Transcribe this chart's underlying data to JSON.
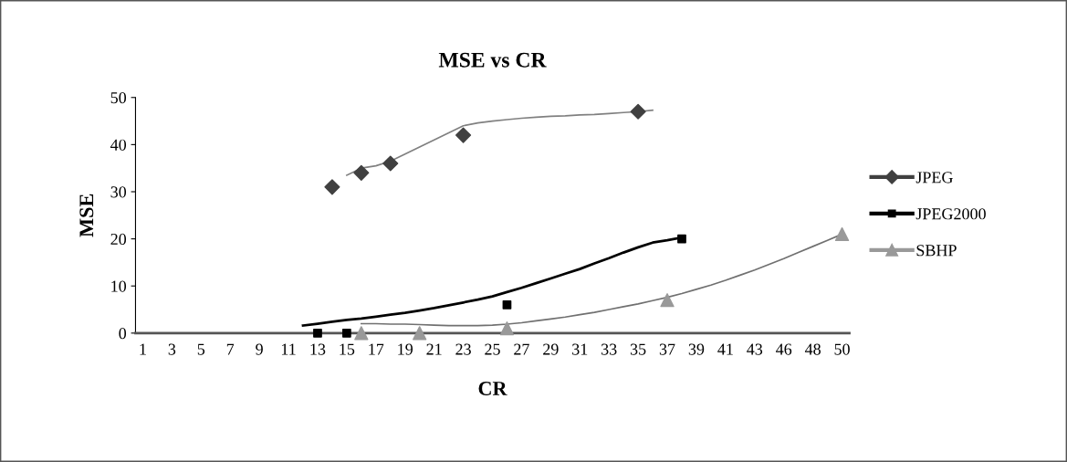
{
  "chart_data": {
    "type": "scatter",
    "title": "MSE vs CR",
    "xlabel": "CR",
    "ylabel": "MSE",
    "categories": [
      "1",
      null,
      "3",
      null,
      "5",
      null,
      "7",
      null,
      "9",
      null,
      "11",
      null,
      "13",
      null,
      "15",
      null,
      "17",
      null,
      "19",
      null,
      "21",
      null,
      "23",
      null,
      "25",
      null,
      "27",
      null,
      "29",
      null,
      "31",
      null,
      "33",
      null,
      "35",
      null,
      "37",
      null,
      "39",
      null,
      "41",
      null,
      "43",
      null,
      "46",
      null,
      "48",
      null,
      "50"
    ],
    "ylim": [
      0,
      50
    ],
    "yticks": [
      0,
      10,
      20,
      30,
      40,
      50
    ],
    "grid": false,
    "legend": "right",
    "series": [
      {
        "name": "JPEG",
        "marker": "diamond",
        "color": "#404040",
        "values": [
          null,
          null,
          null,
          null,
          null,
          null,
          null,
          null,
          null,
          null,
          null,
          null,
          null,
          31,
          null,
          34,
          null,
          36,
          null,
          null,
          null,
          null,
          42,
          null,
          null,
          null,
          null,
          null,
          null,
          null,
          null,
          null,
          null,
          null,
          47,
          null,
          null,
          null,
          null,
          null,
          null,
          null,
          null,
          null,
          null,
          null,
          null,
          null,
          null
        ]
      },
      {
        "name": "JPEG2000",
        "marker": "square",
        "color": "#000000",
        "values": [
          null,
          null,
          null,
          null,
          null,
          null,
          null,
          null,
          null,
          null,
          null,
          null,
          0,
          null,
          0,
          null,
          null,
          null,
          null,
          null,
          null,
          null,
          null,
          null,
          null,
          6,
          null,
          null,
          null,
          null,
          null,
          null,
          null,
          null,
          null,
          null,
          null,
          20,
          null,
          null,
          null,
          null,
          null,
          null,
          null,
          null,
          null,
          null,
          null
        ]
      },
      {
        "name": "SBHP",
        "marker": "triangle",
        "color": "#999999",
        "values": [
          null,
          null,
          null,
          null,
          null,
          null,
          null,
          null,
          null,
          null,
          null,
          null,
          null,
          null,
          null,
          0,
          null,
          null,
          null,
          0,
          null,
          null,
          null,
          null,
          null,
          1,
          null,
          null,
          null,
          null,
          null,
          null,
          null,
          null,
          null,
          null,
          7,
          null,
          null,
          null,
          null,
          null,
          null,
          null,
          null,
          null,
          null,
          null,
          21
        ]
      },
      {
        "type": "line",
        "marker": "none",
        "color": "#808080",
        "values": [
          null,
          null,
          null,
          null,
          null,
          null,
          null,
          null,
          null,
          null,
          null,
          null,
          null,
          null,
          33.5,
          35,
          35.5,
          36.5,
          38,
          39.5,
          41,
          42.5,
          44,
          44.6,
          45,
          45.3,
          45.6,
          45.8,
          46,
          46.1,
          46.3,
          46.4,
          46.6,
          46.8,
          47,
          47.3,
          null,
          null,
          null,
          null,
          null,
          null,
          null,
          null,
          null,
          null,
          null,
          null,
          null
        ]
      },
      {
        "type": "line",
        "marker": "none",
        "color": "#000000",
        "values": [
          null,
          null,
          null,
          null,
          null,
          null,
          null,
          null,
          null,
          null,
          null,
          1.6,
          2.0,
          2.4,
          2.8,
          3.1,
          3.5,
          3.9,
          4.3,
          4.8,
          5.3,
          5.9,
          6.5,
          7.1,
          7.8,
          8.7,
          9.6,
          10.6,
          11.6,
          12.6,
          13.6,
          14.8,
          15.9,
          17.1,
          18.2,
          19.2,
          19.7,
          20.3,
          null,
          null,
          null,
          null,
          null,
          null,
          null,
          null,
          null,
          null,
          null
        ]
      },
      {
        "type": "line",
        "marker": "none",
        "color": "#707070",
        "values": [
          null,
          null,
          null,
          null,
          null,
          null,
          null,
          null,
          null,
          null,
          null,
          null,
          null,
          null,
          null,
          2.0,
          2.0,
          1.9,
          1.9,
          1.8,
          1.7,
          1.6,
          1.6,
          1.6,
          1.7,
          1.9,
          2.2,
          2.6,
          3.0,
          3.4,
          3.9,
          4.4,
          5.0,
          5.6,
          6.2,
          6.9,
          7.6,
          8.4,
          9.3,
          10.2,
          11.2,
          12.3,
          13.4,
          14.6,
          15.8,
          17.1,
          18.4,
          19.7,
          21.0
        ]
      }
    ]
  }
}
